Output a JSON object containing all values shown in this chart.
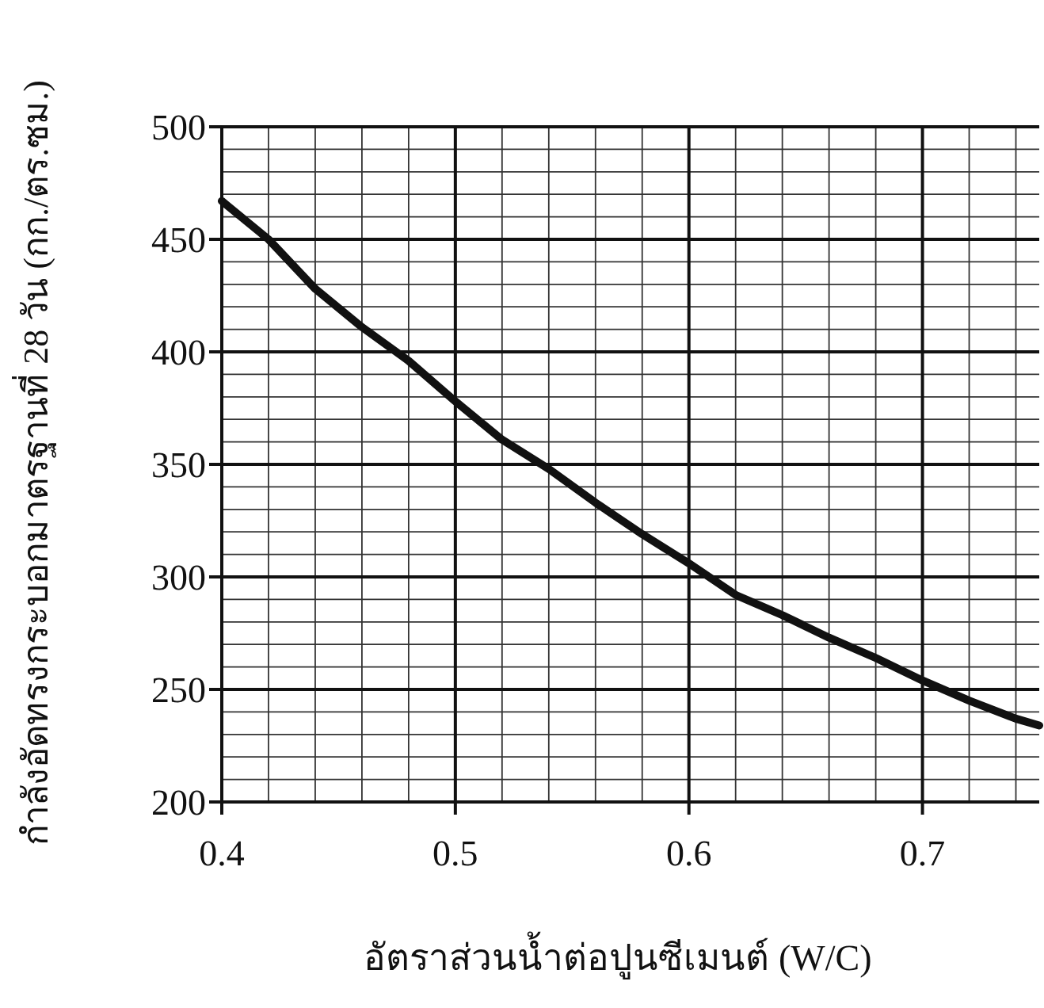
{
  "chart_data": {
    "type": "line",
    "xlabel": "อัตราส่วนน้ำต่อปูนซีเมนต์ (W/C)",
    "ylabel": "กำลังอัดทรงกระบอกมาตรฐานที่ 28 วัน (กก./ตร.ซม.)",
    "x": [
      0.4,
      0.42,
      0.44,
      0.46,
      0.48,
      0.5,
      0.52,
      0.54,
      0.56,
      0.58,
      0.6,
      0.62,
      0.64,
      0.66,
      0.68,
      0.7,
      0.72,
      0.74,
      0.75
    ],
    "series": [
      {
        "color": "#111111",
        "values": [
          467,
          450,
          428,
          411,
          396,
          378,
          361,
          348,
          333,
          319,
          306,
          292,
          283,
          273,
          264,
          254,
          245,
          237,
          234
        ]
      }
    ],
    "xlim": [
      0.4,
      0.75
    ],
    "ylim": [
      200,
      500
    ],
    "xticks": [
      {
        "value": 0.4,
        "label": "0.4"
      },
      {
        "value": 0.5,
        "label": "0.5"
      },
      {
        "value": 0.6,
        "label": "0.6"
      },
      {
        "value": 0.7,
        "label": "0.7"
      }
    ],
    "yticks": [
      200,
      250,
      300,
      350,
      400,
      450,
      500
    ],
    "grid": true,
    "marker": "none",
    "line_style": "solid"
  }
}
